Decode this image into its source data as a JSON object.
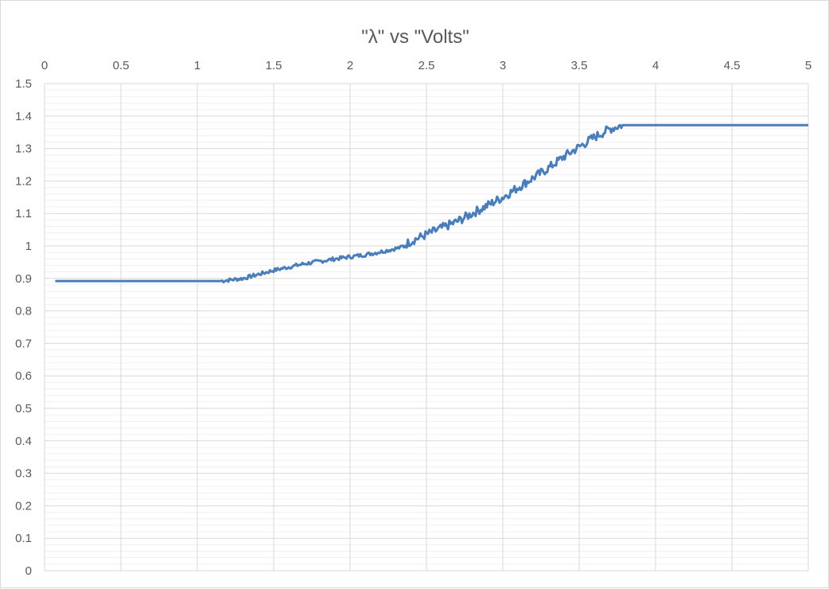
{
  "chart_data": {
    "type": "line",
    "title": "\"λ\" vs \"Volts\"",
    "xlabel": "",
    "ylabel": "",
    "x_axis_position": "top",
    "xlim": [
      0,
      5
    ],
    "ylim": [
      0,
      1.5
    ],
    "x_ticks": [
      "0",
      "0.5",
      "1",
      "1.5",
      "2",
      "2.5",
      "3",
      "3.5",
      "4",
      "4.5",
      "5"
    ],
    "y_ticks": [
      "0",
      "0.1",
      "0.2",
      "0.3",
      "0.4",
      "0.5",
      "0.6",
      "0.7",
      "0.8",
      "0.9",
      "1",
      "1.1",
      "1.2",
      "1.3",
      "1.4",
      "1.5"
    ],
    "grid": "on (major and minor horizontal, major vertical)",
    "legend": "none",
    "series": [
      {
        "color": "#4a7ebb",
        "x": [
          0.07,
          0.5,
          1.0,
          1.15,
          1.3,
          1.5,
          1.7,
          1.9,
          2.1,
          2.2,
          2.33,
          2.4,
          2.5,
          2.6,
          2.7,
          2.8,
          2.9,
          3.0,
          3.1,
          3.2,
          3.3,
          3.4,
          3.5,
          3.6,
          3.7,
          3.78,
          4.0,
          4.5,
          5.0
        ],
        "y": [
          0.892,
          0.892,
          0.892,
          0.892,
          0.9,
          0.925,
          0.945,
          0.96,
          0.973,
          0.982,
          0.995,
          1.015,
          1.035,
          1.055,
          1.075,
          1.1,
          1.125,
          1.15,
          1.18,
          1.21,
          1.24,
          1.275,
          1.305,
          1.335,
          1.36,
          1.372,
          1.372,
          1.372,
          1.372
        ]
      }
    ]
  },
  "colors": {
    "series_line": "#4a7ebb",
    "grid_major": "#d9d9d9",
    "grid_minor": "#f0f0f0",
    "text": "#595959"
  }
}
